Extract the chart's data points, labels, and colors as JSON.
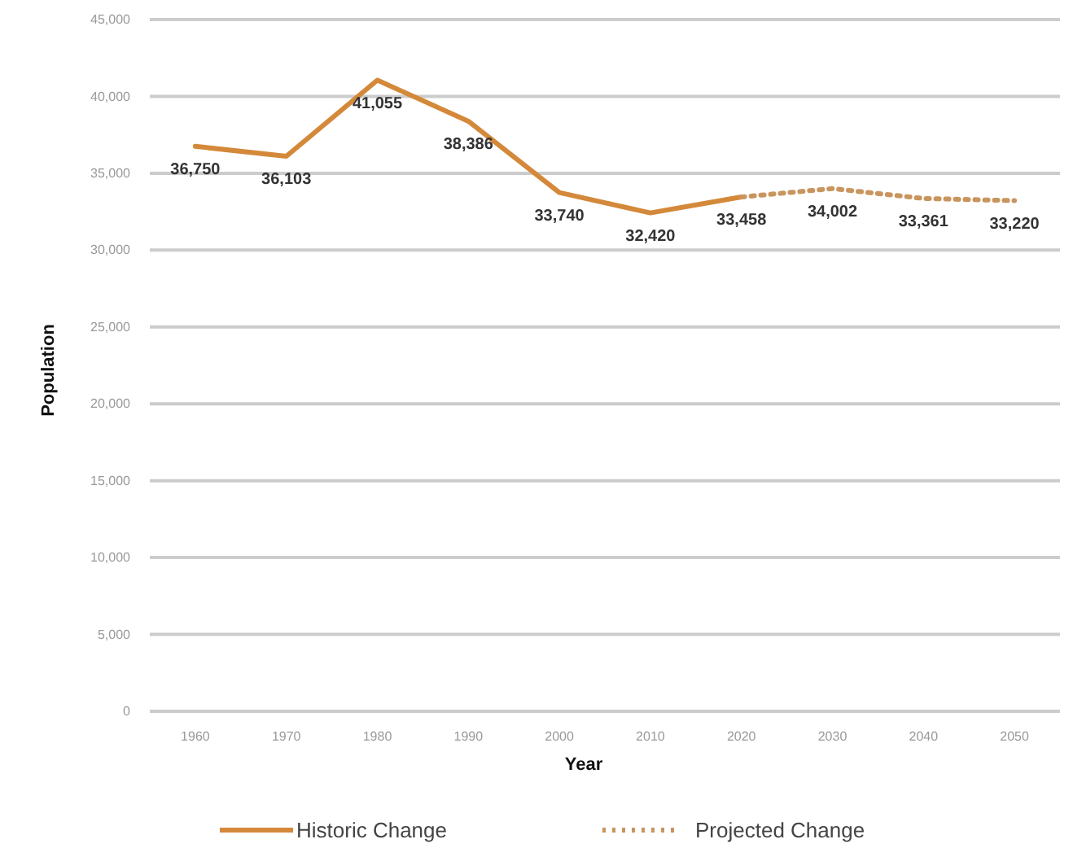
{
  "chart_data": {
    "type": "line",
    "xlabel": "Year",
    "ylabel": "Population",
    "xlim": [
      1955,
      2055
    ],
    "xticks": [
      1960,
      1970,
      1980,
      1990,
      2000,
      2010,
      2020,
      2030,
      2040,
      2050
    ],
    "ylim": [
      0,
      45000
    ],
    "yticks": [
      {
        "value": 0,
        "label": "0"
      },
      {
        "value": 5000,
        "label": "5,000"
      },
      {
        "value": 10000,
        "label": "10,000"
      },
      {
        "value": 15000,
        "label": "15,000"
      },
      {
        "value": 20000,
        "label": "20,000"
      },
      {
        "value": 25000,
        "label": "25,000"
      },
      {
        "value": 30000,
        "label": "30,000"
      },
      {
        "value": 35000,
        "label": "35,000"
      },
      {
        "value": 40000,
        "label": "40,000"
      },
      {
        "value": 45000,
        "label": "45,000"
      }
    ],
    "grid": "y",
    "legend": "bottom",
    "marker": "none",
    "series": [
      {
        "name": "Historic Change",
        "color": "#d4893a",
        "line_style": "solid",
        "x": [
          1960,
          1970,
          1980,
          1990,
          2000,
          2010,
          2020
        ],
        "values": [
          36750,
          36103,
          41055,
          38386,
          33740,
          32420,
          33458
        ],
        "value_labels": [
          "36,750",
          "36,103",
          "41,055",
          "38,386",
          "33,740",
          "32,420",
          "33,458"
        ]
      },
      {
        "name": "Projected Change",
        "color": "#c9955e",
        "line_style": "dotted",
        "x": [
          2020,
          2030,
          2040,
          2050
        ],
        "values": [
          33458,
          34002,
          33361,
          33220
        ],
        "value_labels": [
          null,
          "34,002",
          "33,361",
          "33,220"
        ]
      }
    ]
  }
}
